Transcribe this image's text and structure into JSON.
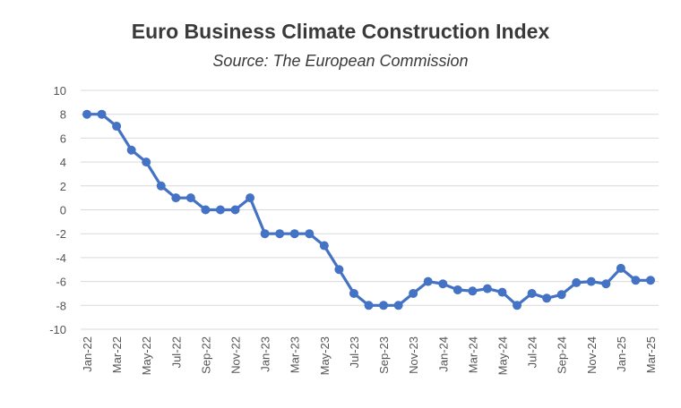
{
  "chart_data": {
    "type": "line",
    "title": "Euro Business Climate Construction Index",
    "subtitle": "Source: The European Commission",
    "xlabel": "",
    "ylabel": "",
    "ylim": [
      -10,
      10
    ],
    "yticks": [
      10,
      8,
      6,
      4,
      2,
      0,
      -2,
      -4,
      -6,
      -8,
      -10
    ],
    "grid": true,
    "legend": "none",
    "color": "#4472c4",
    "x": [
      "Jan-22",
      "Feb-22",
      "Mar-22",
      "Apr-22",
      "May-22",
      "Jun-22",
      "Jul-22",
      "Aug-22",
      "Sep-22",
      "Oct-22",
      "Nov-22",
      "Dec-22",
      "Jan-23",
      "Feb-23",
      "Mar-23",
      "Apr-23",
      "May-23",
      "Jun-23",
      "Jul-23",
      "Aug-23",
      "Sep-23",
      "Oct-23",
      "Nov-23",
      "Dec-23",
      "Jan-24",
      "Feb-24",
      "Mar-24",
      "Apr-24",
      "May-24",
      "Jun-24",
      "Jul-24",
      "Aug-24",
      "Sep-24",
      "Oct-24",
      "Nov-24",
      "Dec-24",
      "Jan-25",
      "Feb-25",
      "Mar-25"
    ],
    "xtick_labels": [
      "Jan-22",
      "Mar-22",
      "May-22",
      "Jul-22",
      "Sep-22",
      "Nov-22",
      "Jan-23",
      "Mar-23",
      "May-23",
      "Jul-23",
      "Sep-23",
      "Nov-23",
      "Jan-24",
      "Mar-24",
      "May-24",
      "Jul-24",
      "Sep-24",
      "Nov-24",
      "Jan-25",
      "Mar-25"
    ],
    "series": [
      {
        "values": [
          8,
          8,
          7,
          5,
          4,
          2,
          1,
          1,
          0,
          0,
          0,
          1,
          -2,
          -2,
          -2,
          -2,
          -3,
          -5,
          -7,
          -8,
          -8,
          -8,
          -7,
          -6,
          -6.2,
          -6.7,
          -6.8,
          -6.6,
          -6.9,
          -8,
          -7,
          -7.4,
          -7.1,
          -6.1,
          -6,
          -6.2,
          -4.9,
          -5.9,
          -5.9
        ]
      }
    ]
  }
}
